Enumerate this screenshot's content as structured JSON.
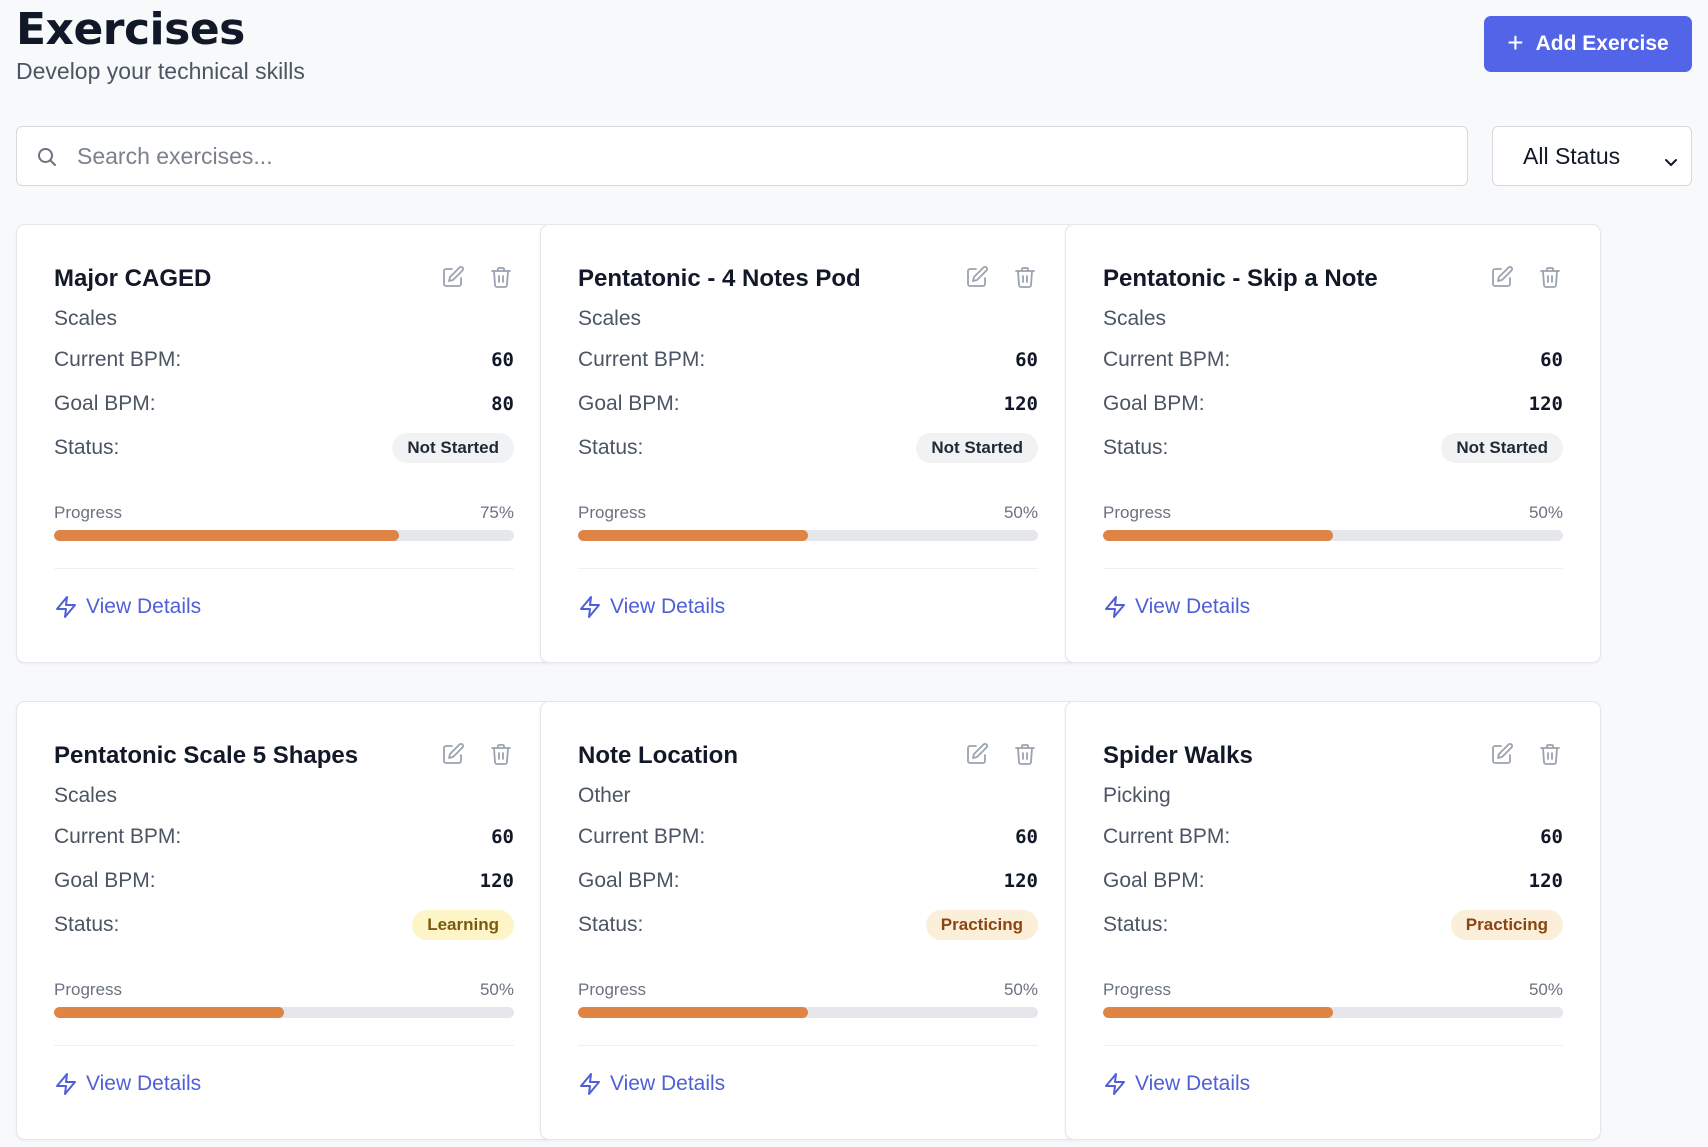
{
  "header": {
    "title": "Exercises",
    "subtitle": "Develop your technical skills",
    "add_button_label": "Add Exercise",
    "add_button_icon": "plus-icon"
  },
  "search": {
    "placeholder": "Search exercises...",
    "value": ""
  },
  "filter": {
    "selected": "All Status"
  },
  "labels": {
    "current_bpm": "Current BPM:",
    "goal_bpm": "Goal BPM:",
    "status": "Status:",
    "progress": "Progress",
    "view_details": "View Details"
  },
  "colors": {
    "accent": "#5264e8",
    "progress_fill": "#e08445",
    "link": "#4f5fd7"
  },
  "exercises": [
    {
      "name": "Major CAGED",
      "category": "Scales",
      "current_bpm": "60",
      "goal_bpm": "80",
      "status": "Not Started",
      "status_kind": "notstarted",
      "progress": 75,
      "progress_label": "75%"
    },
    {
      "name": "Pentatonic - 4 Notes Pod",
      "category": "Scales",
      "current_bpm": "60",
      "goal_bpm": "120",
      "status": "Not Started",
      "status_kind": "notstarted",
      "progress": 50,
      "progress_label": "50%"
    },
    {
      "name": "Pentatonic - Skip a Note",
      "category": "Scales",
      "current_bpm": "60",
      "goal_bpm": "120",
      "status": "Not Started",
      "status_kind": "notstarted",
      "progress": 50,
      "progress_label": "50%"
    },
    {
      "name": "Pentatonic Scale 5 Shapes",
      "category": "Scales",
      "current_bpm": "60",
      "goal_bpm": "120",
      "status": "Learning",
      "status_kind": "learning",
      "progress": 50,
      "progress_label": "50%"
    },
    {
      "name": "Note Location",
      "category": "Other",
      "current_bpm": "60",
      "goal_bpm": "120",
      "status": "Practicing",
      "status_kind": "practicing",
      "progress": 50,
      "progress_label": "50%"
    },
    {
      "name": "Spider Walks",
      "category": "Picking",
      "current_bpm": "60",
      "goal_bpm": "120",
      "status": "Practicing",
      "status_kind": "practicing",
      "progress": 50,
      "progress_label": "50%"
    }
  ]
}
